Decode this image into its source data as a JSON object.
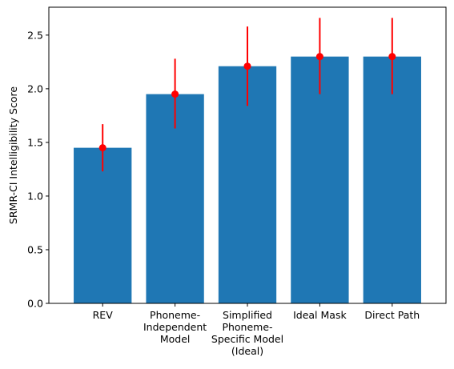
{
  "chart_data": {
    "type": "bar",
    "title": "",
    "xlabel": "",
    "ylabel": "SRMR-CI Intelligibility  Score",
    "categories": [
      [
        "REV"
      ],
      [
        "Phoneme-",
        "Independent",
        "Model"
      ],
      [
        "Simplified",
        "Phoneme-",
        "Specific Model",
        "(Ideal)"
      ],
      [
        "Ideal Mask"
      ],
      [
        "Direct Path"
      ]
    ],
    "values": [
      1.45,
      1.95,
      2.21,
      2.3,
      2.3
    ],
    "error_lower": [
      1.23,
      1.63,
      1.84,
      1.95,
      1.95
    ],
    "error_upper": [
      1.67,
      2.28,
      2.58,
      2.66,
      2.66
    ],
    "ylim": [
      0,
      2.76
    ],
    "yticks": [
      "0.0",
      "0.5",
      "1.0",
      "1.5",
      "2.0",
      "2.5"
    ],
    "grid": false,
    "bar_color": "#1f77b4",
    "error_color": "#ff0000"
  }
}
